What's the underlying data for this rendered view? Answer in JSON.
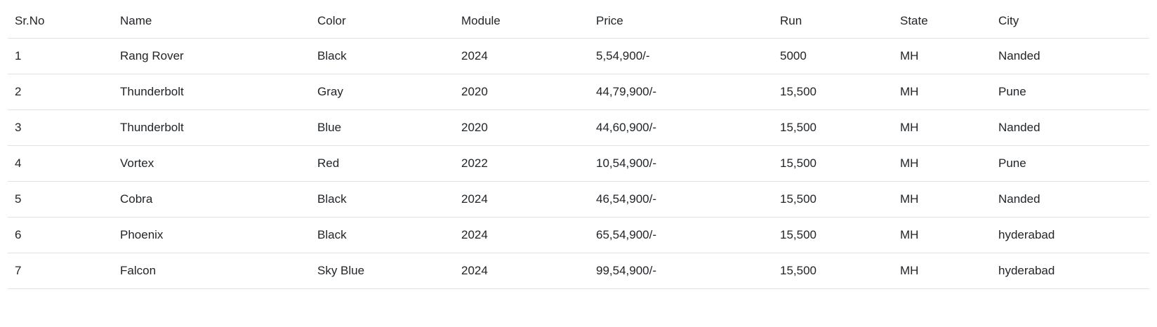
{
  "table": {
    "headers": [
      "Sr.No",
      "Name",
      "Color",
      "Module",
      "Price",
      "Run",
      "State",
      "City"
    ],
    "rows": [
      [
        "1",
        "Rang Rover",
        "Black",
        "2024",
        "5,54,900/-",
        "5000",
        "MH",
        "Nanded"
      ],
      [
        "2",
        "Thunderbolt",
        "Gray",
        "2020",
        "44,79,900/-",
        "15,500",
        "MH",
        "Pune"
      ],
      [
        "3",
        "Thunderbolt",
        "Blue",
        "2020",
        "44,60,900/-",
        "15,500",
        "MH",
        "Nanded"
      ],
      [
        "4",
        "Vortex",
        "Red",
        "2022",
        "10,54,900/-",
        "15,500",
        "MH",
        "Pune"
      ],
      [
        "5",
        "Cobra",
        "Black",
        "2024",
        "46,54,900/-",
        "15,500",
        "MH",
        "Nanded"
      ],
      [
        "6",
        "Phoenix",
        "Black",
        "2024",
        "65,54,900/-",
        "15,500",
        "MH",
        "hyderabad"
      ],
      [
        "7",
        "Falcon",
        "Sky Blue",
        "2024",
        "99,54,900/-",
        "15,500",
        "MH",
        "hyderabad"
      ]
    ]
  }
}
